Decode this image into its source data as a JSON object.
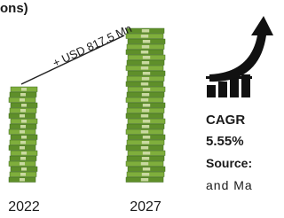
{
  "header": {
    "title": "ons)"
  },
  "growth": {
    "label": "+ USD 817.5 Mn"
  },
  "stacks": [
    {
      "year": "2022"
    },
    {
      "year": "2027"
    }
  ],
  "side": {
    "cagr_label": "CAGR",
    "cagr_value": "5.55%",
    "source_label": "Source:",
    "source_text": "and Ma"
  }
}
